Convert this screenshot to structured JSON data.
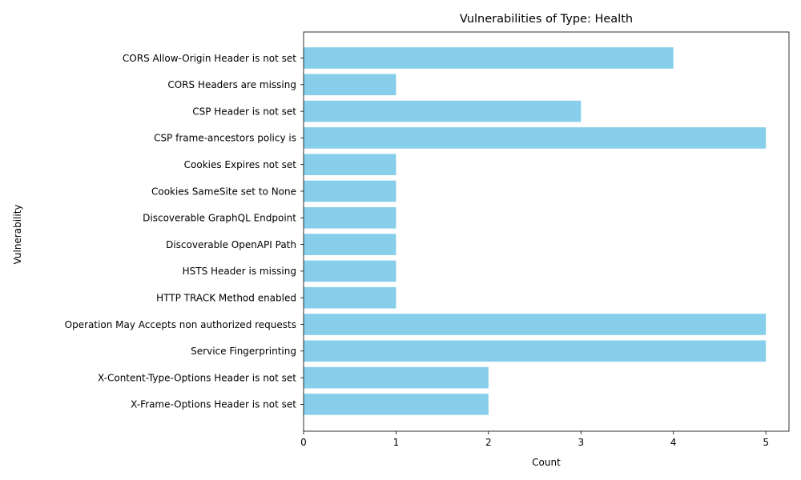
{
  "chart_data": {
    "type": "bar",
    "orientation": "horizontal",
    "title": "Vulnerabilities of Type: Health",
    "xlabel": "Count",
    "ylabel": "Vulnerability",
    "xlim": [
      0,
      5.25
    ],
    "xticks": [
      "0",
      "1",
      "2",
      "3",
      "4",
      "5"
    ],
    "grid": false,
    "bar_color": "#87ceeb",
    "categories": [
      "CORS Allow-Origin Header is not set",
      "CORS Headers are missing",
      "CSP Header is not set",
      "CSP frame-ancestors policy is",
      "Cookies Expires not set",
      "Cookies SameSite set to None",
      "Discoverable GraphQL Endpoint",
      "Discoverable OpenAPI Path",
      "HSTS Header is missing",
      "HTTP TRACK Method enabled",
      "Operation May Accepts non authorized requests",
      "Service Fingerprinting",
      "X-Content-Type-Options Header is not set",
      "X-Frame-Options Header is not set"
    ],
    "values": [
      4,
      1,
      3,
      5,
      1,
      1,
      1,
      1,
      1,
      1,
      5,
      5,
      2,
      2
    ]
  }
}
